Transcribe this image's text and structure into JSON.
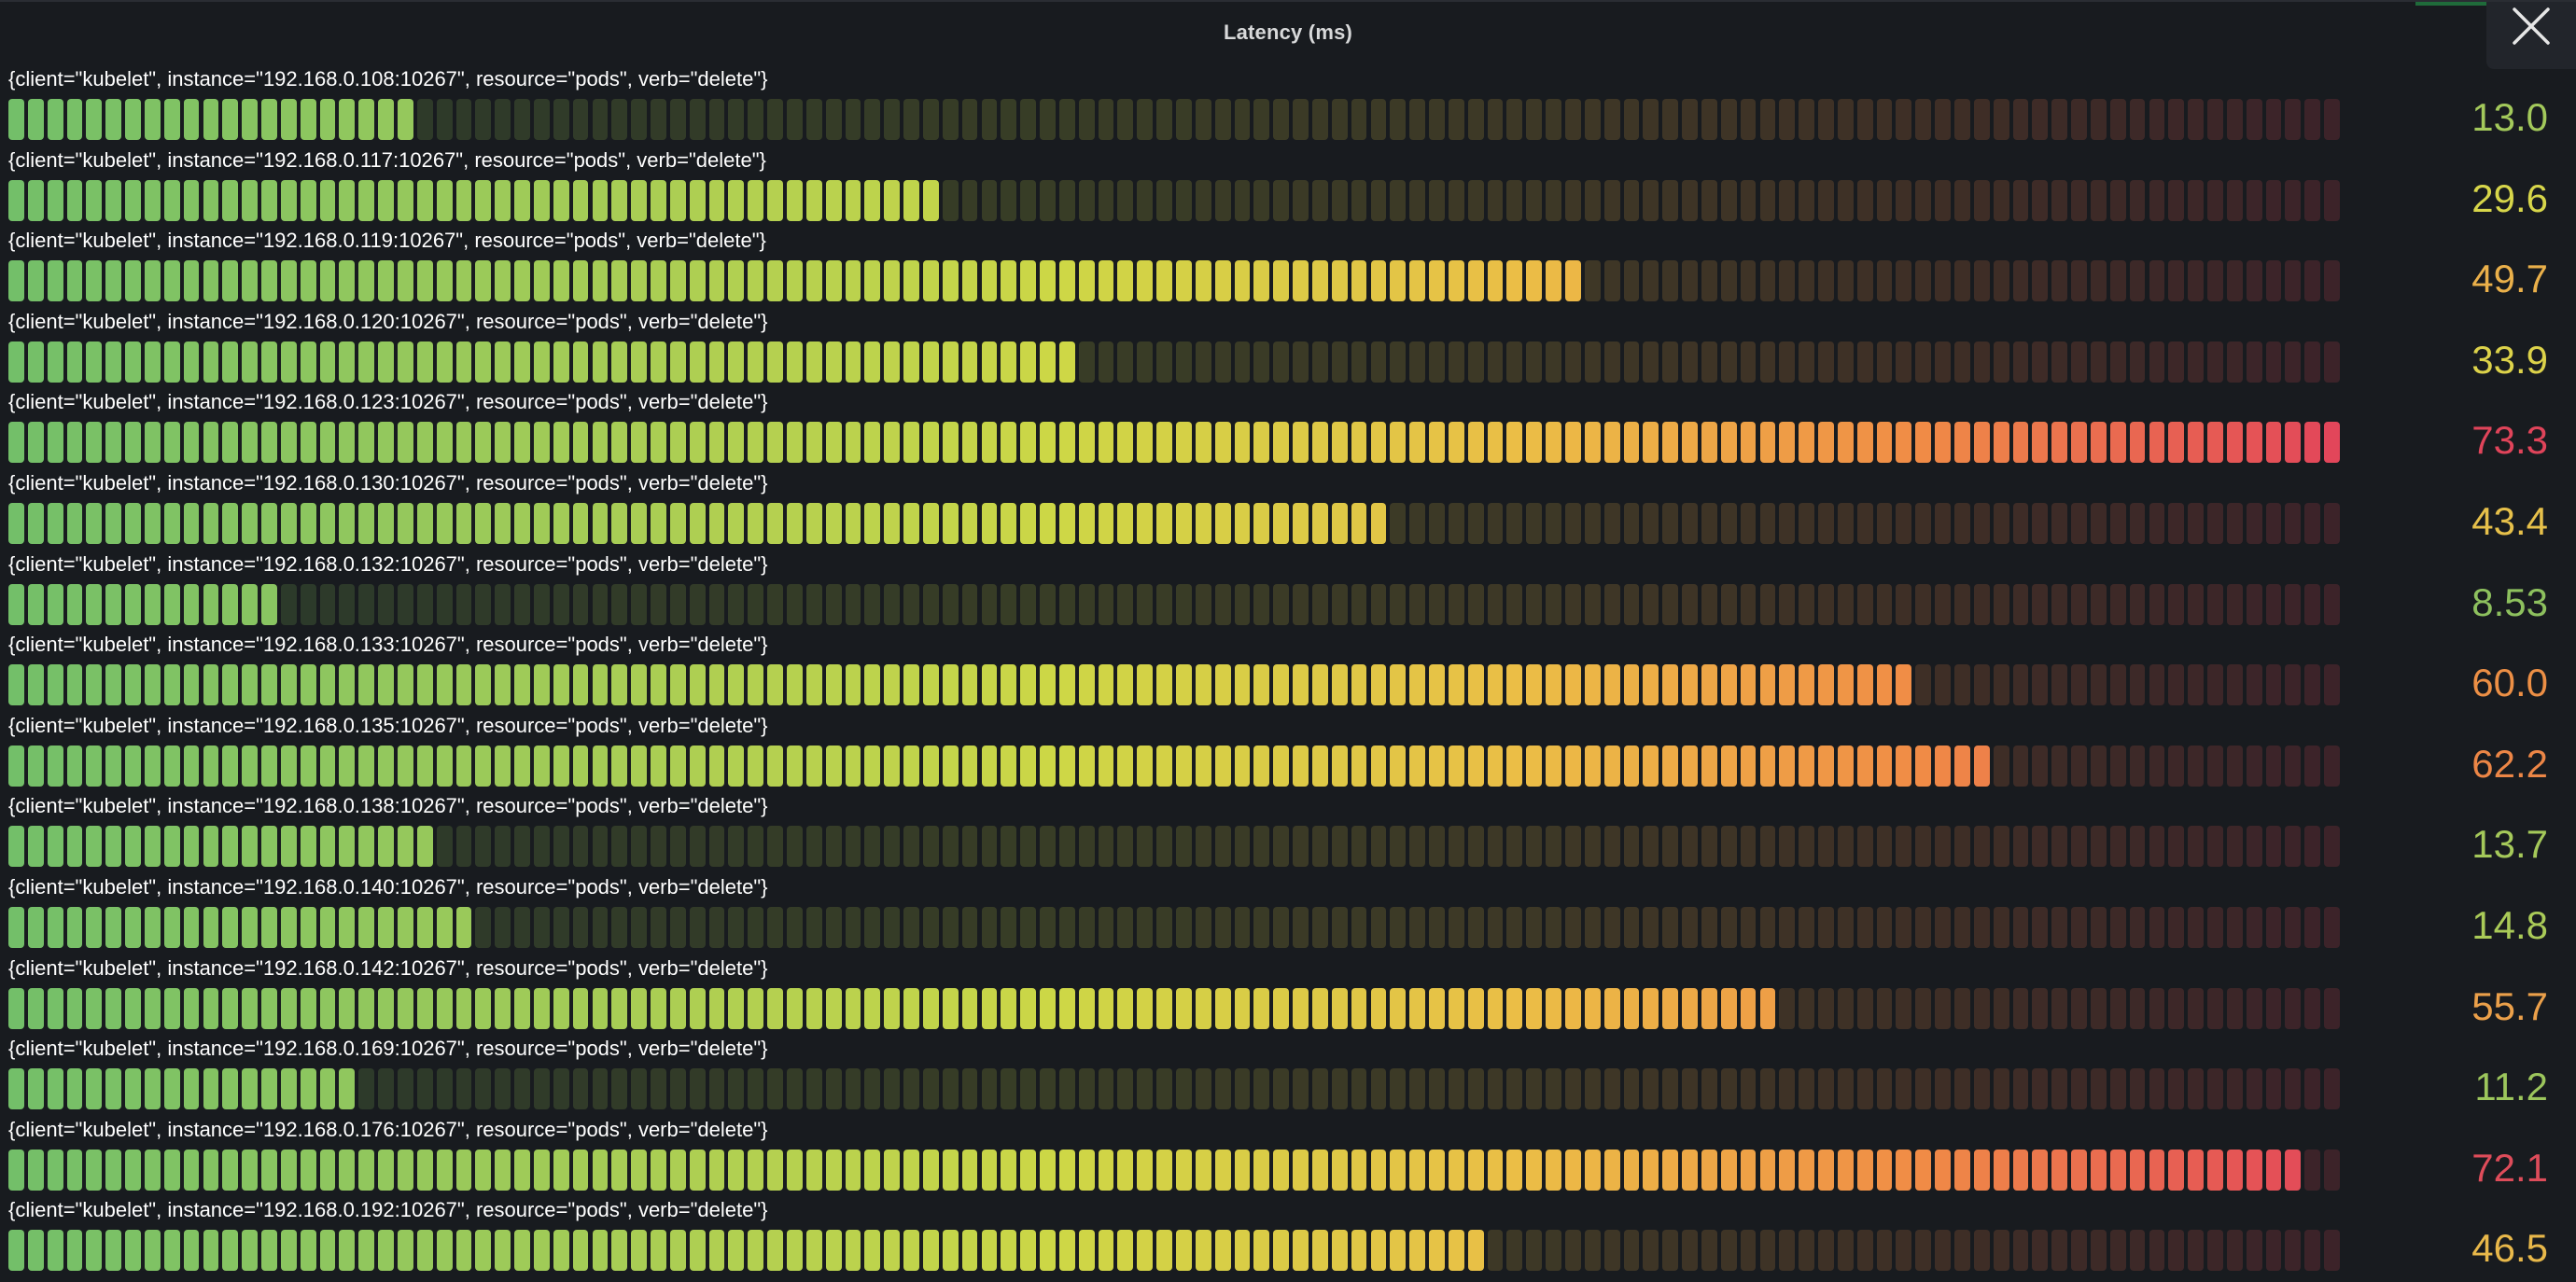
{
  "panel": {
    "title": "Latency (ms)",
    "close_icon": "close-icon"
  },
  "gauge": {
    "type": "bar-gauge-retro-lcd",
    "min": 0,
    "max": 73.3,
    "colors": {
      "green": "#73bf69",
      "yellow": "#fade2a",
      "orange": "#ff9830",
      "red": "#f2495c"
    }
  },
  "rows": [
    {
      "label": "{client=\"kubelet\", instance=\"192.168.0.108:10267\", resource=\"pods\", verb=\"delete\"}",
      "value": 13.0,
      "display": "13.0",
      "color": "#a3c95b"
    },
    {
      "label": "{client=\"kubelet\", instance=\"192.168.0.117:10267\", resource=\"pods\", verb=\"delete\"}",
      "value": 29.6,
      "display": "29.6",
      "color": "#d7d64a"
    },
    {
      "label": "{client=\"kubelet\", instance=\"192.168.0.119:10267\", resource=\"pods\", verb=\"delete\"}",
      "value": 49.7,
      "display": "49.7",
      "color": "#eab04a"
    },
    {
      "label": "{client=\"kubelet\", instance=\"192.168.0.120:10267\", resource=\"pods\", verb=\"delete\"}",
      "value": 33.9,
      "display": "33.9",
      "color": "#dcd24a"
    },
    {
      "label": "{client=\"kubelet\", instance=\"192.168.0.123:10267\", resource=\"pods\", verb=\"delete\"}",
      "value": 73.3,
      "display": "73.3",
      "color": "#e0445a"
    },
    {
      "label": "{client=\"kubelet\", instance=\"192.168.0.130:10267\", resource=\"pods\", verb=\"delete\"}",
      "value": 43.4,
      "display": "43.4",
      "color": "#e6c04a"
    },
    {
      "label": "{client=\"kubelet\", instance=\"192.168.0.132:10267\", resource=\"pods\", verb=\"delete\"}",
      "value": 8.53,
      "display": "8.53",
      "color": "#8dc05e"
    },
    {
      "label": "{client=\"kubelet\", instance=\"192.168.0.133:10267\", resource=\"pods\", verb=\"delete\"}",
      "value": 60.0,
      "display": "60.0",
      "color": "#ec8f45"
    },
    {
      "label": "{client=\"kubelet\", instance=\"192.168.0.135:10267\", resource=\"pods\", verb=\"delete\"}",
      "value": 62.2,
      "display": "62.2",
      "color": "#ec8646"
    },
    {
      "label": "{client=\"kubelet\", instance=\"192.168.0.138:10267\", resource=\"pods\", verb=\"delete\"}",
      "value": 13.7,
      "display": "13.7",
      "color": "#a5c95a"
    },
    {
      "label": "{client=\"kubelet\", instance=\"192.168.0.140:10267\", resource=\"pods\", verb=\"delete\"}",
      "value": 14.8,
      "display": "14.8",
      "color": "#aacb58"
    },
    {
      "label": "{client=\"kubelet\", instance=\"192.168.0.142:10267\", resource=\"pods\", verb=\"delete\"}",
      "value": 55.7,
      "display": "55.7",
      "color": "#eba04a"
    },
    {
      "label": "{client=\"kubelet\", instance=\"192.168.0.169:10267\", resource=\"pods\", verb=\"delete\"}",
      "value": 11.2,
      "display": "11.2",
      "color": "#9cc65c"
    },
    {
      "label": "{client=\"kubelet\", instance=\"192.168.0.176:10267\", resource=\"pods\", verb=\"delete\"}",
      "value": 72.1,
      "display": "72.1",
      "color": "#de4c5a"
    },
    {
      "label": "{client=\"kubelet\", instance=\"192.168.0.192:10267\", resource=\"pods\", verb=\"delete\"}",
      "value": 46.5,
      "display": "46.5",
      "color": "#e8b84a"
    }
  ]
}
